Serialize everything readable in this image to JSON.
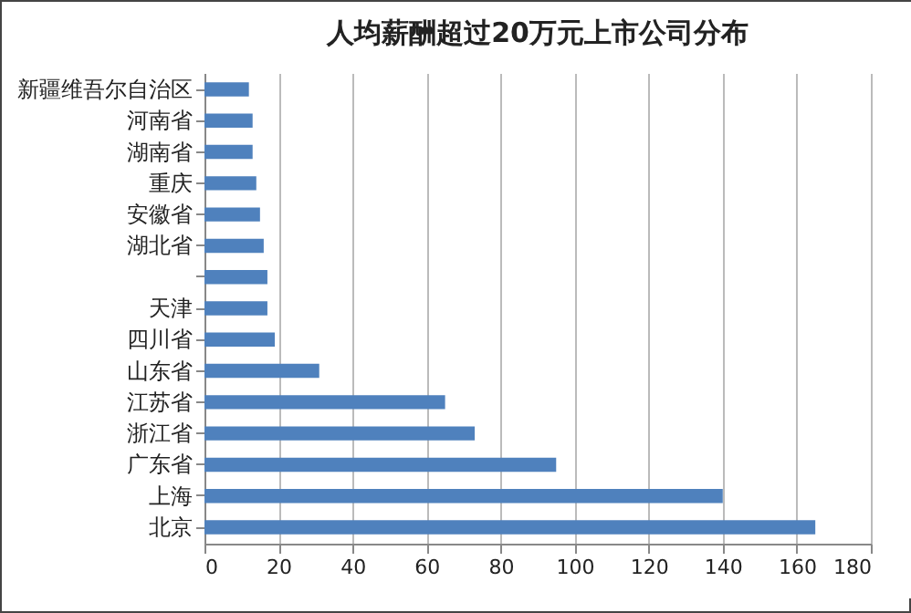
{
  "chart_data": {
    "type": "bar",
    "title": "人均薪酬超过20万元上市公司分布",
    "orientation": "horizontal",
    "categories": [
      "新疆维吾尔自治区",
      "河南省",
      "湖南省",
      "重庆",
      "安徽省",
      "湖北省",
      null,
      "天津",
      "四川省",
      "山东省",
      "江苏省",
      "浙江省",
      "广东省",
      "上海",
      "北京"
    ],
    "values": [
      12,
      13,
      13,
      14,
      15,
      16,
      17,
      17,
      19,
      31,
      65,
      73,
      95,
      140,
      165
    ],
    "color": "#4f81bd",
    "xlim": [
      0,
      180
    ],
    "xticks": [
      0,
      20,
      40,
      60,
      80,
      100,
      120,
      140,
      160,
      180
    ],
    "grid": "x"
  }
}
